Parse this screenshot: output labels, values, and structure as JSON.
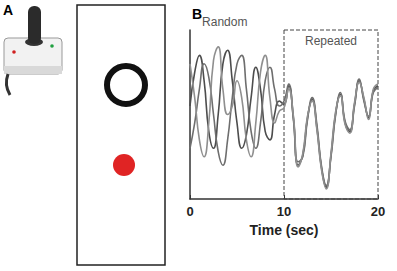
{
  "panel_a": {
    "label": "A"
  },
  "chart_data": {
    "type": "line",
    "panel_label": "B",
    "x_label": "Time (sec)",
    "x": [
      0,
      0.5,
      1,
      1.5,
      2,
      2.5,
      3,
      3.5,
      4,
      4.5,
      5,
      5.5,
      6,
      6.5,
      7,
      7.5,
      8,
      8.5,
      9,
      9.5,
      10,
      10.5,
      11,
      11.5,
      12,
      12.5,
      13,
      13.5,
      14,
      14.5,
      15,
      15.5,
      16,
      16.5,
      17,
      17.5,
      18,
      18.5,
      19,
      19.5,
      20
    ],
    "xlim": [
      0,
      20
    ],
    "xticks": [
      0,
      10,
      20
    ],
    "ylim": [
      0,
      100
    ],
    "tick_labels": "x",
    "grid": false,
    "annotations": [
      {
        "text": "Random",
        "x": 3.7
      }
    ],
    "highlight": {
      "label": "Repeated",
      "from": 10,
      "to": 20
    },
    "series": [
      {
        "color": "#4d4d4d",
        "values": [
          55,
          75,
          85,
          70,
          40,
          30,
          50,
          80,
          88,
          70,
          45,
          30,
          38,
          60,
          78,
          65,
          40,
          35,
          50,
          58,
          56,
          67,
          48,
          20,
          26,
          48,
          59,
          42,
          18,
          7,
          26,
          51,
          62,
          45,
          40,
          56,
          70,
          59,
          48,
          64,
          67
        ]
      },
      {
        "color": "#6e6e6e",
        "values": [
          30,
          45,
          65,
          80,
          72,
          50,
          28,
          20,
          35,
          60,
          80,
          85,
          65,
          40,
          30,
          45,
          70,
          78,
          65,
          55,
          58,
          68,
          47,
          22,
          25,
          47,
          60,
          44,
          19,
          8,
          25,
          50,
          63,
          46,
          41,
          55,
          71,
          58,
          49,
          63,
          66
        ]
      },
      {
        "color": "#8f8f8f",
        "values": [
          80,
          60,
          35,
          25,
          45,
          82,
          90,
          65,
          50,
          55,
          70,
          60,
          35,
          25,
          45,
          75,
          85,
          60,
          45,
          52,
          54,
          65,
          49,
          19,
          27,
          49,
          58,
          41,
          17,
          6,
          27,
          52,
          61,
          44,
          39,
          57,
          69,
          60,
          47,
          65,
          68
        ]
      }
    ]
  }
}
